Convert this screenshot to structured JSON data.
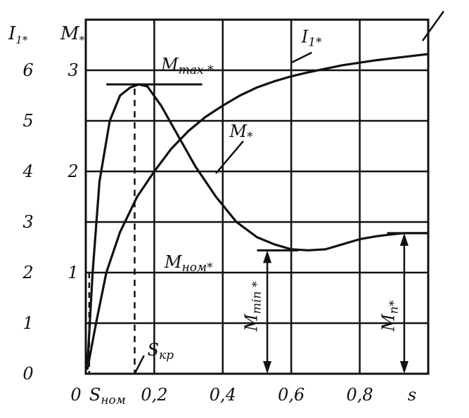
{
  "chart_data": {
    "type": "line",
    "xlabel": "s",
    "xlim": [
      0,
      1.0
    ],
    "x_ticks": [
      "0",
      "0,2",
      "0,4",
      "0,6",
      "0,8"
    ],
    "x_tick_values": [
      0,
      0.2,
      0.4,
      0.6,
      0.8
    ],
    "ylabel_left": "I1*",
    "ylim_left": [
      0,
      7
    ],
    "left_ticks": [
      "0",
      "1",
      "2",
      "3",
      "4",
      "5",
      "6"
    ],
    "ylabel_right": "M*",
    "ylim_right": [
      0,
      3.5
    ],
    "right_ticks": [
      "1",
      "2",
      "3"
    ],
    "right_tick_values": [
      1,
      2,
      3
    ],
    "grid": true,
    "series": [
      {
        "name": "I1*",
        "axis": "left",
        "x": [
          0.005,
          0.03,
          0.06,
          0.1,
          0.15,
          0.2,
          0.25,
          0.3,
          0.35,
          0.4,
          0.45,
          0.5,
          0.55,
          0.6,
          0.65,
          0.7,
          0.75,
          0.8,
          0.85,
          0.9,
          0.95,
          1.0
        ],
        "y": [
          0.1,
          1.0,
          2.0,
          2.8,
          3.5,
          4.0,
          4.45,
          4.8,
          5.08,
          5.3,
          5.5,
          5.66,
          5.78,
          5.88,
          5.96,
          6.03,
          6.1,
          6.15,
          6.2,
          6.24,
          6.28,
          6.32
        ]
      },
      {
        "name": "M*",
        "axis": "right",
        "x": [
          0.005,
          0.02,
          0.04,
          0.07,
          0.1,
          0.13,
          0.155,
          0.18,
          0.22,
          0.27,
          0.32,
          0.38,
          0.44,
          0.5,
          0.55,
          0.6,
          0.65,
          0.7,
          0.75,
          0.8,
          0.85,
          0.9,
          0.93,
          1.0
        ],
        "y": [
          0.1,
          1.0,
          1.9,
          2.5,
          2.75,
          2.83,
          2.86,
          2.84,
          2.65,
          2.35,
          2.05,
          1.75,
          1.5,
          1.35,
          1.28,
          1.23,
          1.22,
          1.23,
          1.28,
          1.33,
          1.36,
          1.38,
          1.39,
          1.39
        ]
      }
    ],
    "annotations": {
      "i1_label": "I1*",
      "m_label": "M*",
      "mmax_label": "Mmax *",
      "mnom_label": "Mном*",
      "mmin_label": "Mmin *",
      "mp_label": "Mп*",
      "s_kp_label": "Sкр",
      "s_nom_label": "Sном"
    },
    "levels": {
      "m_max": 2.86,
      "s_kp": 0.155,
      "m_min": 1.22,
      "m_start": 1.39,
      "s_nom": 0.01
    }
  }
}
